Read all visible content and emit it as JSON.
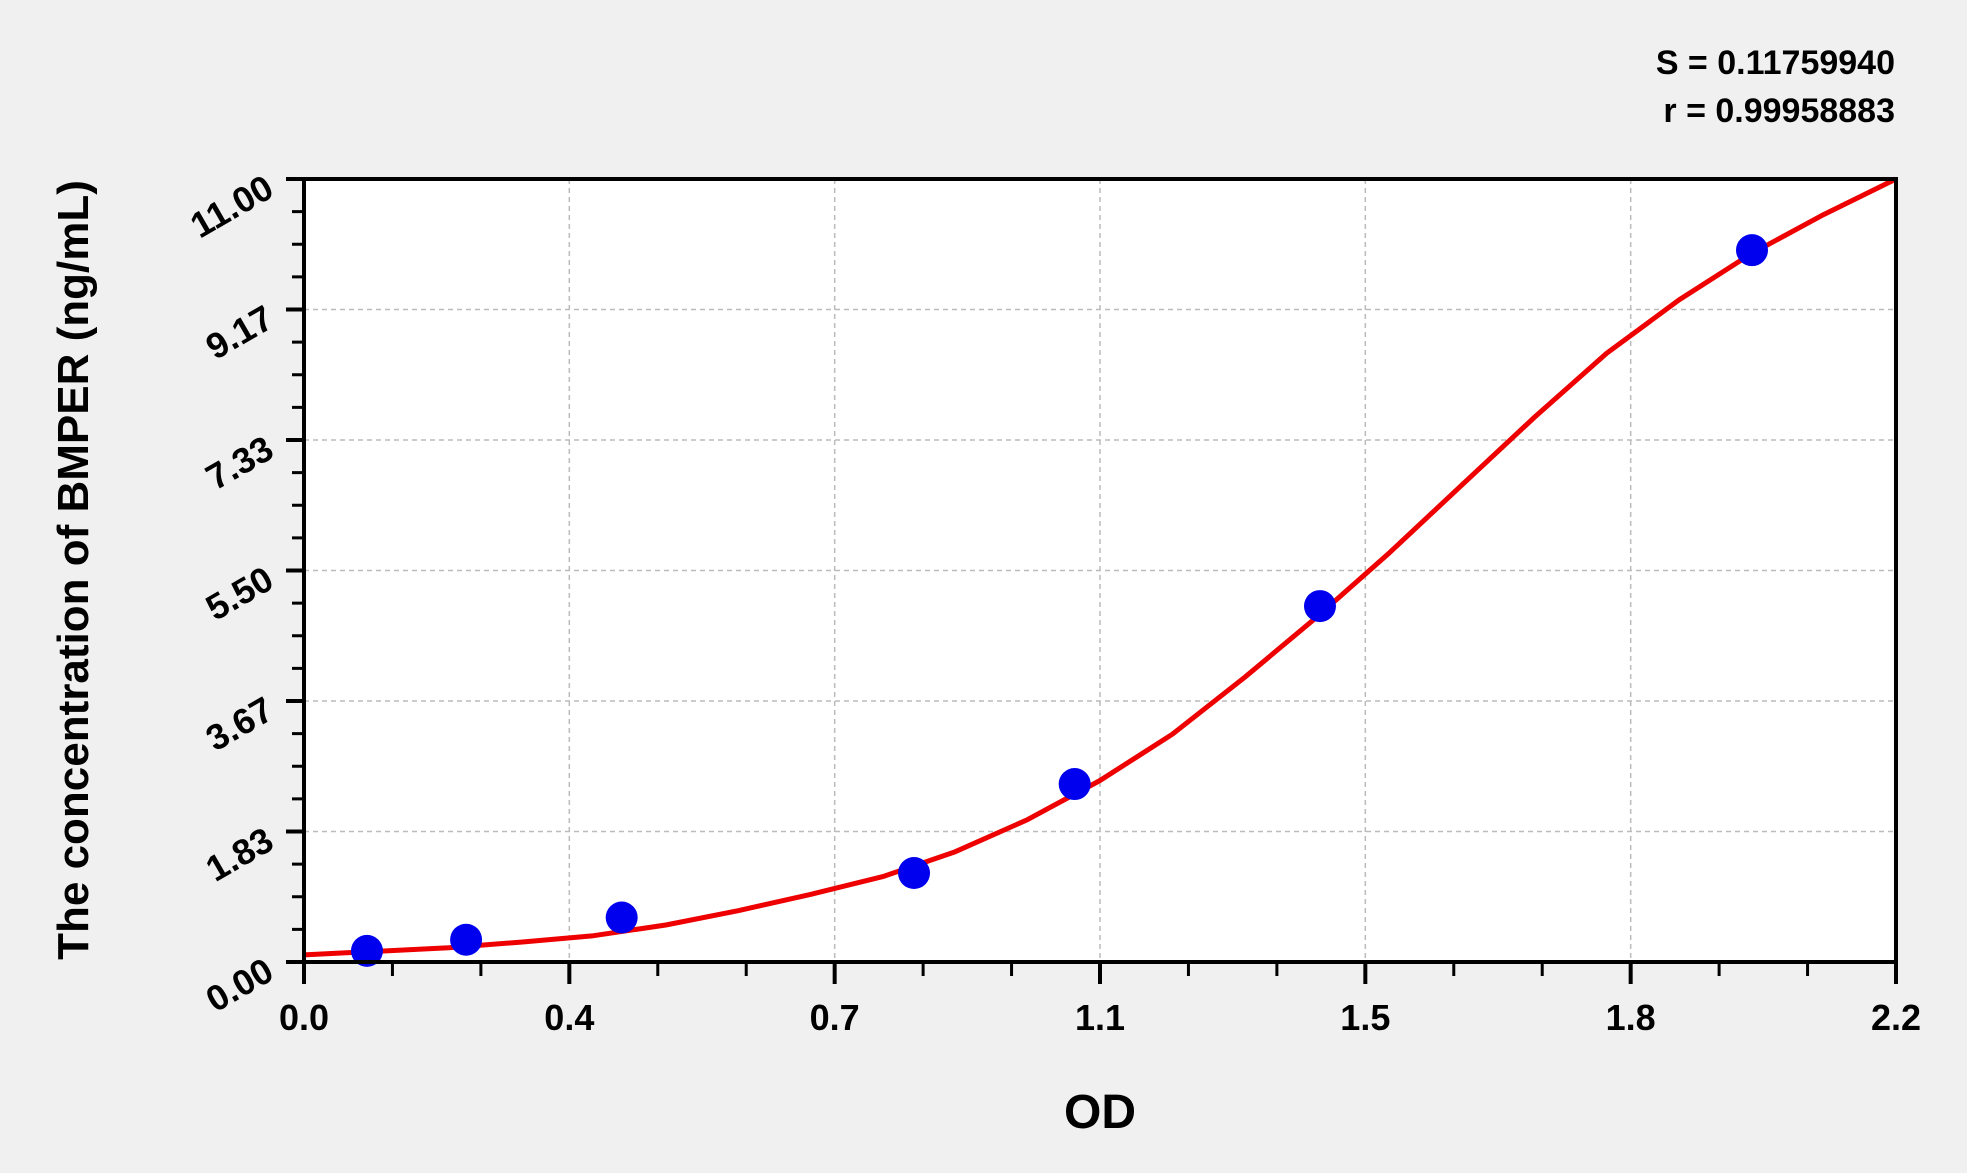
{
  "chart_data": {
    "type": "scatter",
    "title": "",
    "xlabel": "OD",
    "ylabel": "The concentration of BMPER (ng/mL)",
    "xlim": [
      0,
      2.2
    ],
    "ylim": [
      0,
      11
    ],
    "x_ticks": [
      "0.0",
      "0.4",
      "0.7",
      "1.1",
      "1.5",
      "1.8",
      "2.2"
    ],
    "y_ticks": [
      "0.00",
      "1.83",
      "3.67",
      "5.50",
      "7.33",
      "9.17",
      "11.00"
    ],
    "grid": true,
    "annotations": [
      "S = 0.11759940",
      "r = 0.99958883"
    ],
    "colors": {
      "points": "#0000ee",
      "curve": "#ee0000",
      "background": "#f0f0f0"
    },
    "series": [
      {
        "type": "scatter",
        "x": [
          0.087,
          0.224,
          0.439,
          0.843,
          1.065,
          1.404,
          2.001
        ],
        "y": [
          0.156,
          0.313,
          0.625,
          1.25,
          2.5,
          5,
          10
        ]
      },
      {
        "type": "line",
        "x": [
          0,
          0.1,
          0.2,
          0.3,
          0.4,
          0.5,
          0.6,
          0.7,
          0.8,
          0.9,
          1.0,
          1.1,
          1.2,
          1.3,
          1.4,
          1.5,
          1.6,
          1.7,
          1.8,
          1.9,
          2.0,
          2.1,
          2.2
        ],
        "y": [
          0.1,
          0.15,
          0.2,
          0.28,
          0.37,
          0.52,
          0.72,
          0.95,
          1.2,
          1.55,
          2.0,
          2.55,
          3.2,
          4.0,
          4.85,
          5.75,
          6.7,
          7.65,
          8.55,
          9.3,
          9.95,
          10.5,
          11.0
        ]
      }
    ]
  }
}
